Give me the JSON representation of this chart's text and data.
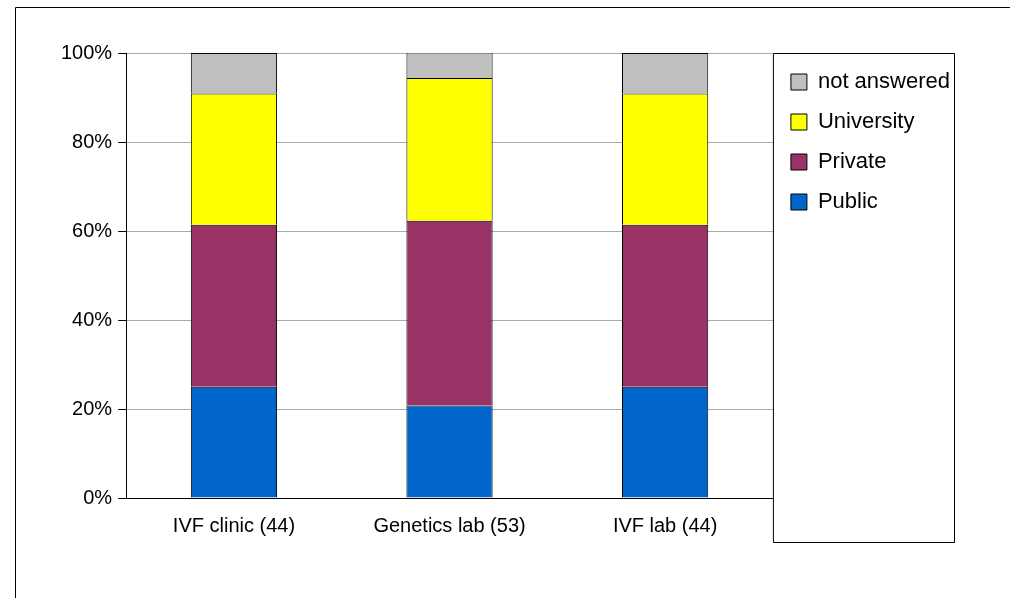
{
  "chart_data": {
    "type": "bar",
    "stacked": true,
    "categories": [
      "IVF clinic (44)",
      "Genetics lab (53)",
      "IVF lab (44)"
    ],
    "series": [
      {
        "name": "Public",
        "color": "#0066cc",
        "values": [
          25,
          20.8,
          25
        ]
      },
      {
        "name": "Private",
        "color": "#993366",
        "values": [
          36.4,
          41.5,
          36.4
        ]
      },
      {
        "name": "University",
        "color": "#ffff00",
        "values": [
          29.5,
          32.1,
          29.5
        ]
      },
      {
        "name": "not answered",
        "color": "#c0c0c0",
        "values": [
          9.1,
          5.7,
          9.1
        ]
      }
    ],
    "ylim": [
      0,
      100
    ],
    "yticks": [
      {
        "value": 0,
        "label": "0%"
      },
      {
        "value": 20,
        "label": "20%"
      },
      {
        "value": 40,
        "label": "40%"
      },
      {
        "value": 60,
        "label": "60%"
      },
      {
        "value": 80,
        "label": "80%"
      },
      {
        "value": 100,
        "label": "100%"
      }
    ],
    "grid": "y",
    "legend": "top right"
  }
}
